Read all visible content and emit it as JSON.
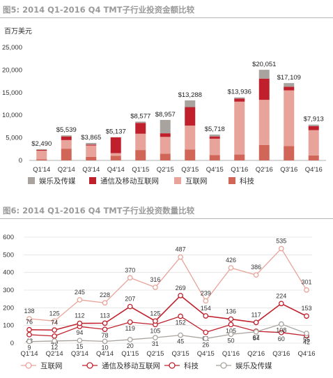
{
  "figure1": {
    "title": "图5: 2014 Q1-2016 Q4 TMT子行业投资金额比较",
    "unit": "百万美元"
  },
  "figure2": {
    "title": "图6: 2014 Q1-2016 Q4 TMT子行业投资数量比较"
  },
  "colors": {
    "ent": "#a8a39e",
    "telecom": "#c0202c",
    "internet": "#e8a49a",
    "tech": "#d06558",
    "title_gray": "#9a9a9a"
  },
  "chart_data": [
    {
      "type": "bar",
      "stacked": true,
      "categories": [
        "Q1'14",
        "Q2'14",
        "Q3'14",
        "Q4'14",
        "Q1'15",
        "Q2'15",
        "Q3'15",
        "Q4'15",
        "Q1'16",
        "Q2'16",
        "Q3'16",
        "Q4'16"
      ],
      "series": [
        {
          "name": "科技",
          "color_key": "tech",
          "values": [
            250,
            2600,
            800,
            1000,
            2300,
            1500,
            2400,
            1200,
            1300,
            3400,
            3200,
            1100
          ]
        },
        {
          "name": "互联网",
          "color_key": "internet",
          "values": [
            1900,
            1900,
            2500,
            600,
            3600,
            3700,
            5300,
            3600,
            11700,
            10000,
            12300,
            5600
          ]
        },
        {
          "name": "通信及移动互联网",
          "color_key": "telecom",
          "values": [
            190,
            800,
            200,
            3500,
            2400,
            800,
            4100,
            500,
            700,
            4700,
            800,
            900
          ]
        },
        {
          "name": "娱乐及传媒",
          "color_key": "ent",
          "values": [
            150,
            239,
            365,
            37,
            277,
            2957,
            1488,
            418,
            236,
            1951,
            809,
            313
          ]
        }
      ],
      "totals": [
        "$2,490",
        "$5,539",
        "$3,865",
        "$5,137",
        "$8,577",
        "$8,957",
        "$13,288",
        "$5,718",
        "$13,936",
        "$20,051",
        "$17,109",
        "$7,913"
      ],
      "ylim": [
        0,
        25000
      ],
      "yticks": [
        "0",
        "5,000",
        "10,000",
        "15,000",
        "20,000",
        "25,000"
      ],
      "ytick_values": [
        0,
        5000,
        10000,
        15000,
        20000,
        25000
      ],
      "legend": [
        "娱乐及传媒",
        "通信及移动互联网",
        "互联网",
        "科技"
      ],
      "legend_position": "bottom",
      "grid": false
    },
    {
      "type": "line",
      "categories": [
        "Q1'14",
        "Q2'14",
        "Q3'14",
        "Q4'14",
        "Q1'15",
        "Q2'15",
        "Q3'15",
        "Q4'15",
        "Q1'16",
        "Q2'16",
        "Q3'16",
        "Q4'16"
      ],
      "series": [
        {
          "name": "互联网",
          "color_key": "internet",
          "values": [
            138,
            125,
            245,
            228,
            370,
            316,
            487,
            239,
            426,
            386,
            535,
            301
          ]
        },
        {
          "name": "通信及移动互联网",
          "color_key": "telecom",
          "values": [
            48,
            40,
            94,
            78,
            119,
            105,
            152,
            61,
            105,
            67,
            60,
            42
          ]
        },
        {
          "name": "科技",
          "color_key": "telecom",
          "values": [
            76,
            74,
            112,
            113,
            207,
            125,
            269,
            154,
            136,
            117,
            224,
            153
          ]
        },
        {
          "name": "娱乐及传媒",
          "color_key": "ent",
          "values": [
            9,
            12,
            15,
            10,
            20,
            31,
            45,
            26,
            50,
            64,
            108,
            55
          ]
        }
      ],
      "ylim": [
        0,
        600
      ],
      "yticks": [
        "0",
        "100",
        "200",
        "300",
        "400",
        "500",
        "600"
      ],
      "ytick_values": [
        0,
        100,
        200,
        300,
        400,
        500,
        600
      ],
      "legend": [
        "互联网",
        "通信及移动互联网",
        "科技",
        "娱乐及传媒"
      ],
      "legend_position": "bottom",
      "grid": true
    }
  ]
}
